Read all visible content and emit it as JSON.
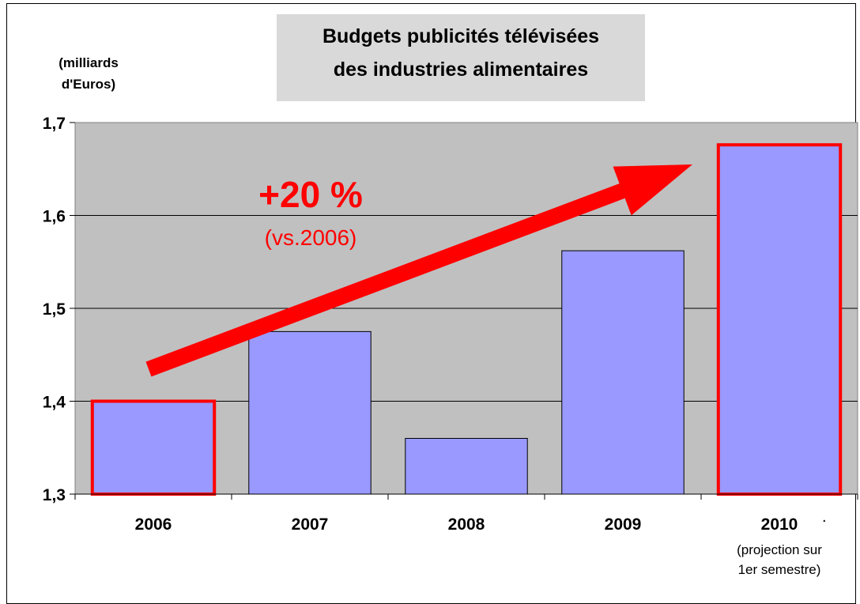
{
  "chart_data": {
    "type": "bar",
    "title_lines": [
      "Budgets publicités télévisées",
      "des industries alimentaires"
    ],
    "ylabel_lines": [
      "(milliards",
      "d'Euros)"
    ],
    "xlabel": "",
    "categories": [
      "2006",
      "2007",
      "2008",
      "2009",
      "2010"
    ],
    "category_sublabels": [
      "",
      "",
      "",
      "",
      "(projection sur\n1er semestre)"
    ],
    "values": [
      1.4,
      1.475,
      1.36,
      1.562,
      1.676
    ],
    "highlighted_bars": [
      "2006",
      "2010"
    ],
    "ylim": [
      1.3,
      1.7
    ],
    "yticks": [
      "1,3",
      "1,4",
      "1,5",
      "1,6",
      "1,7"
    ],
    "grid": true,
    "annotation": {
      "main": "+20 %",
      "sub": "(vs.2006)"
    },
    "extra_mark": ".",
    "colors": {
      "bar_fill": "#9999ff",
      "bar_stroke": "#000000",
      "highlight_stroke": "#ff0000",
      "plot_bg": "#c0c0c0",
      "arrow": "#ff0000",
      "annotation": "#ff0000",
      "title_bg": "#d9d9d9"
    }
  }
}
